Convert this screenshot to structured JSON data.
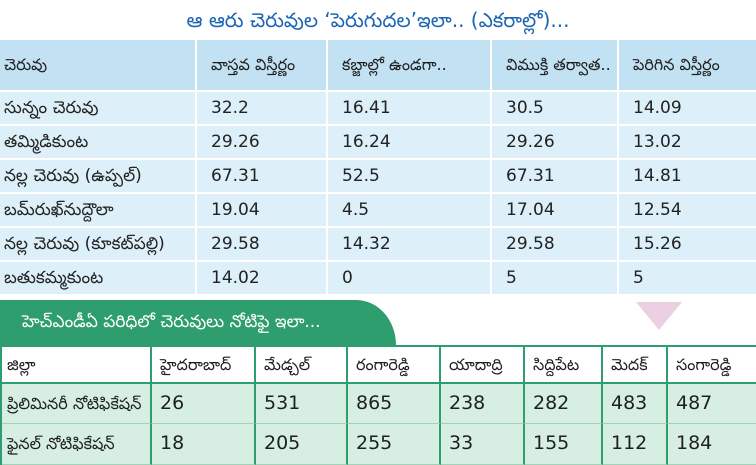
{
  "chart_data": [
    {
      "type": "table",
      "title": "ఆ ఆరు చెరువుల ‘పెరుగుదల’ఇలా.. (ఎకరాల్లో)...",
      "columns": [
        "చెరువు",
        "వాస్తవ విస్తీర్ణం",
        "కబ్జాల్లో ఉండగా..",
        "విముక్తి తర్వాత..",
        "పెరిగిన విస్తీర్ణం"
      ],
      "rows": [
        [
          "సున్నం చెరువు",
          32.2,
          16.41,
          30.5,
          14.09
        ],
        [
          "తమ్మిడికుంట",
          29.26,
          16.24,
          29.26,
          13.02
        ],
        [
          "నల్ల చెరువు (ఉప్పల్)",
          67.31,
          52.5,
          67.31,
          14.81
        ],
        [
          "బమ్‌రుఖ్‌నుద్దౌలా",
          19.04,
          4.5,
          17.04,
          12.54
        ],
        [
          "నల్ల చెరువు (కూకట్‌పల్లి)",
          29.58,
          14.32,
          29.58,
          15.26
        ],
        [
          "బతుకమ్మకుంట",
          14.02,
          0,
          5,
          5
        ]
      ]
    },
    {
      "type": "table",
      "title": "హెచ్ఎండీఏ పరిధిలో చెరువులు నోటిఫై ఇలా...",
      "columns": [
        "జిల్లా",
        "హైదరాబాద్",
        "మేడ్చల్",
        "రంగారెడ్డి",
        "యాదాద్రి",
        "సిద్దిపేట",
        "మెదక్",
        "సంగారెడ్డి"
      ],
      "rows": [
        [
          "ప్రిలిమినరీ నోటిఫికేషన్",
          26,
          531,
          865,
          238,
          282,
          483,
          487
        ],
        [
          "ఫైనల్ నోటిఫికేషన్",
          18,
          205,
          255,
          33,
          155,
          112,
          184
        ]
      ]
    }
  ],
  "colors": {
    "title_blue": "#1c64b4",
    "lakes_header_bg": "#c2e1f2",
    "lakes_row_bg": "#ddeff8",
    "notify_green": "#2f9e6e",
    "notify_row_bg": "#d7efe3",
    "notify_line": "#9fd3b9",
    "arrow_pink": "#ebd0e1"
  },
  "icons": {
    "section_pointer": "down-arrow-icon"
  }
}
